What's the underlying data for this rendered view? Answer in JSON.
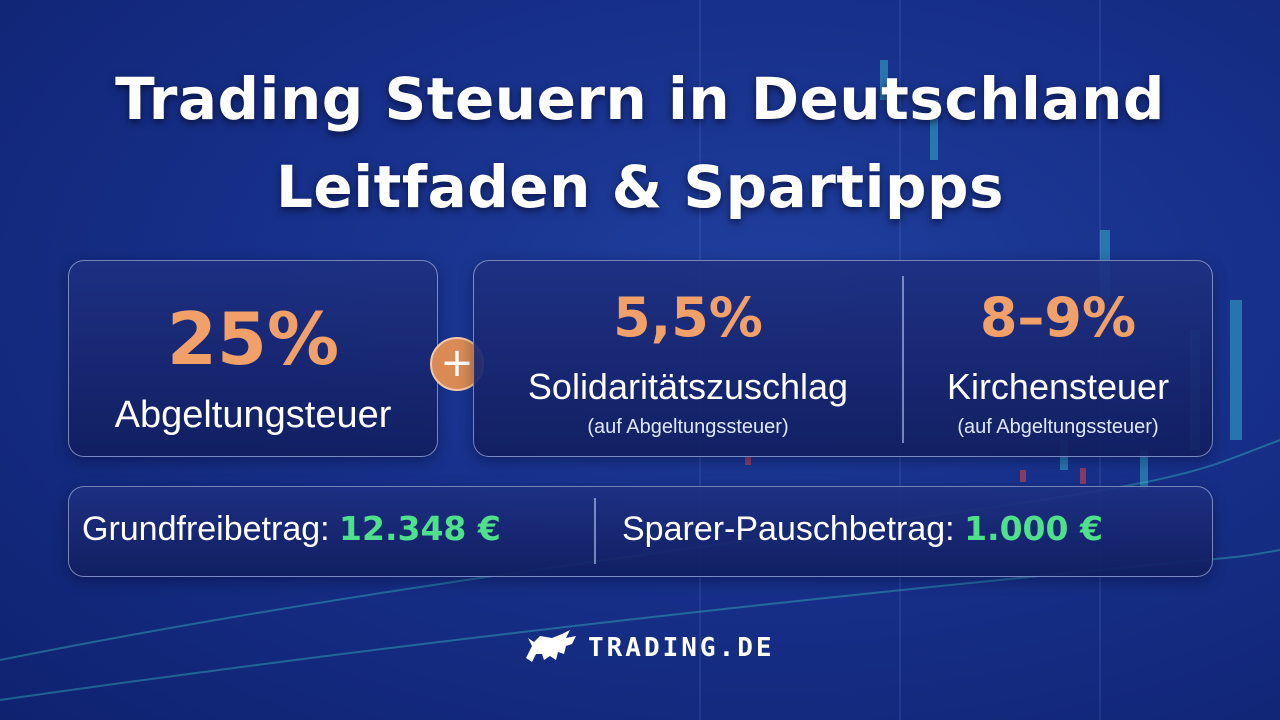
{
  "title": {
    "line1": "Trading Steuern in Deutschland",
    "line2": "Leitfaden & Spartipps"
  },
  "cards": {
    "abgeltung": {
      "value": "25%",
      "label": "Abgeltungsteuer"
    },
    "soli": {
      "value": "5,5%",
      "label": "Solidaritätszuschlag",
      "note": "(auf Abgeltungssteuer)"
    },
    "kirche": {
      "value": "8–9%",
      "label": "Kirchensteuer",
      "note": "(auf Abgeltungssteuer)"
    }
  },
  "plus_symbol": "+",
  "allowances": {
    "grund_label": "Grundfreibetrag:",
    "grund_value": "12.348 €",
    "sparer_label": "Sparer-Pauschbetrag:",
    "sparer_value": "1.000 €"
  },
  "brand": {
    "name": "TRADING.DE",
    "icon": "bull-icon"
  },
  "colors": {
    "background": "#17308a",
    "accent_orange": "#f0a068",
    "accent_green": "#4ee08a"
  }
}
